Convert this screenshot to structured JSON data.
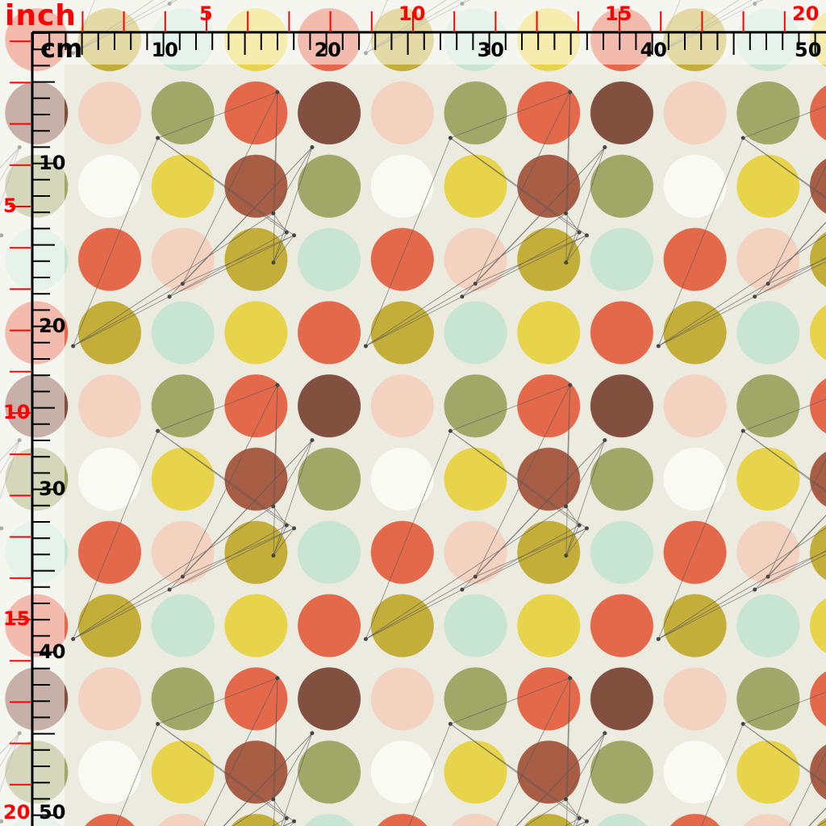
{
  "ruler": {
    "inch_unit": "inch",
    "cm_unit": "cm",
    "top_inch_labels": [
      "5",
      "10",
      "15",
      "20"
    ],
    "top_cm_labels": [
      "10",
      "20",
      "30",
      "40",
      "50"
    ],
    "left_inch_labels": [
      "5",
      "10",
      "15",
      "20"
    ],
    "left_cm_labels": [
      "10",
      "20",
      "30",
      "40",
      "50"
    ],
    "inch_color": "#ff0000",
    "cm_color": "#000000"
  },
  "pattern": {
    "background": "#ecebe0",
    "rows": [
      [
        "#f3d3c0",
        "#a1a767",
        "#e4694a",
        "#82503f"
      ],
      [
        "#fafaf5",
        "#e8d44a",
        "#a85e45",
        "#a1a767"
      ],
      [
        "#e4694a",
        "#f3d3c0",
        "#c4ae3a",
        "#c8e4d2"
      ],
      [
        "#c4ae3a",
        "#c8e4d2",
        "#e8d44a",
        "#e4694a"
      ]
    ]
  }
}
